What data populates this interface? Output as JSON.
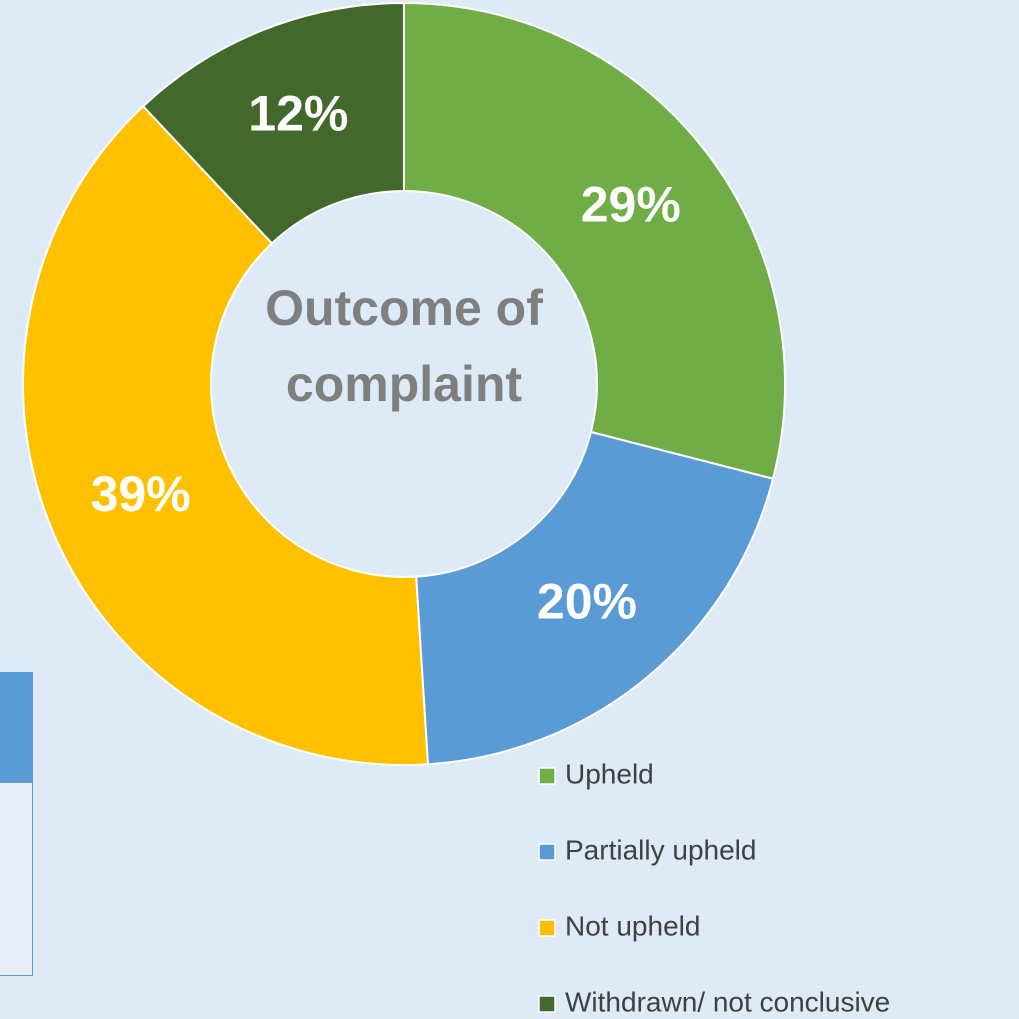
{
  "chart_data": {
    "type": "donut",
    "title": "Outcome of complaint",
    "categories": [
      "Upheld",
      "Partially upheld",
      "Not upheld",
      "Withdrawn/ not conclusive"
    ],
    "values": [
      29,
      20,
      39,
      12
    ],
    "value_labels": [
      "29%",
      "20%",
      "39%",
      "12%"
    ],
    "colors": [
      "#70ad47",
      "#5b9bd5",
      "#ffc000",
      "#43682b"
    ],
    "legend": "bottom-right"
  }
}
